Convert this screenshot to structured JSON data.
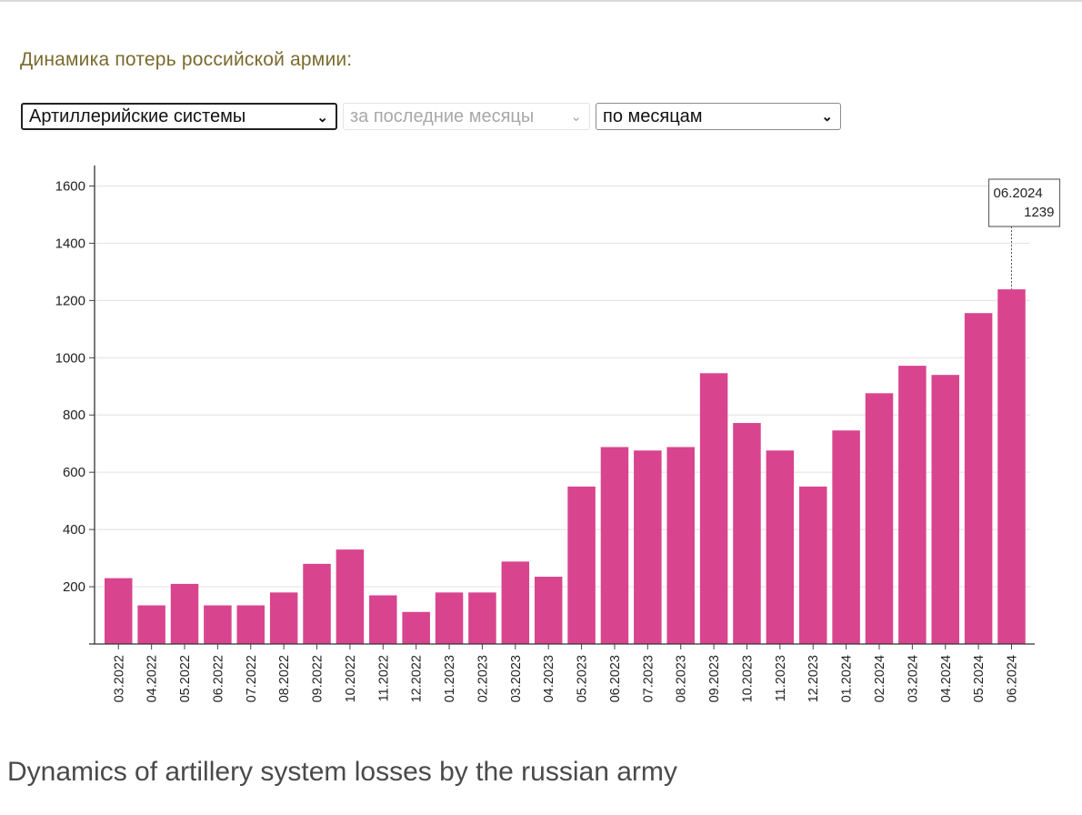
{
  "header": {
    "title": "Динамика потерь российской армии:"
  },
  "filters": {
    "category": "Артиллерийские системы",
    "period": "за последние месяцы",
    "grouping": "по месяцам"
  },
  "caption": "Dynamics of artillery system losses by the russian army",
  "colors": {
    "bar": "#d9448e",
    "title": "#7a6a2e"
  },
  "chart_data": {
    "type": "bar",
    "categories": [
      "03.2022",
      "04.2022",
      "05.2022",
      "06.2022",
      "07.2022",
      "08.2022",
      "09.2022",
      "10.2022",
      "11.2022",
      "12.2022",
      "01.2023",
      "02.2023",
      "03.2023",
      "04.2023",
      "05.2023",
      "06.2023",
      "07.2023",
      "08.2023",
      "09.2023",
      "10.2023",
      "11.2023",
      "12.2023",
      "01.2024",
      "02.2024",
      "03.2024",
      "04.2024",
      "05.2024",
      "06.2024"
    ],
    "values": [
      230,
      135,
      210,
      135,
      135,
      180,
      280,
      330,
      170,
      112,
      180,
      180,
      288,
      235,
      550,
      688,
      676,
      688,
      946,
      772,
      676,
      550,
      746,
      876,
      972,
      940,
      1156,
      1239
    ],
    "yticks": [
      200,
      400,
      600,
      800,
      1000,
      1200,
      1400,
      1600
    ],
    "ylim": [
      0,
      1600
    ],
    "grid": true,
    "tooltip": {
      "label": "06.2024",
      "value": "1239"
    }
  }
}
